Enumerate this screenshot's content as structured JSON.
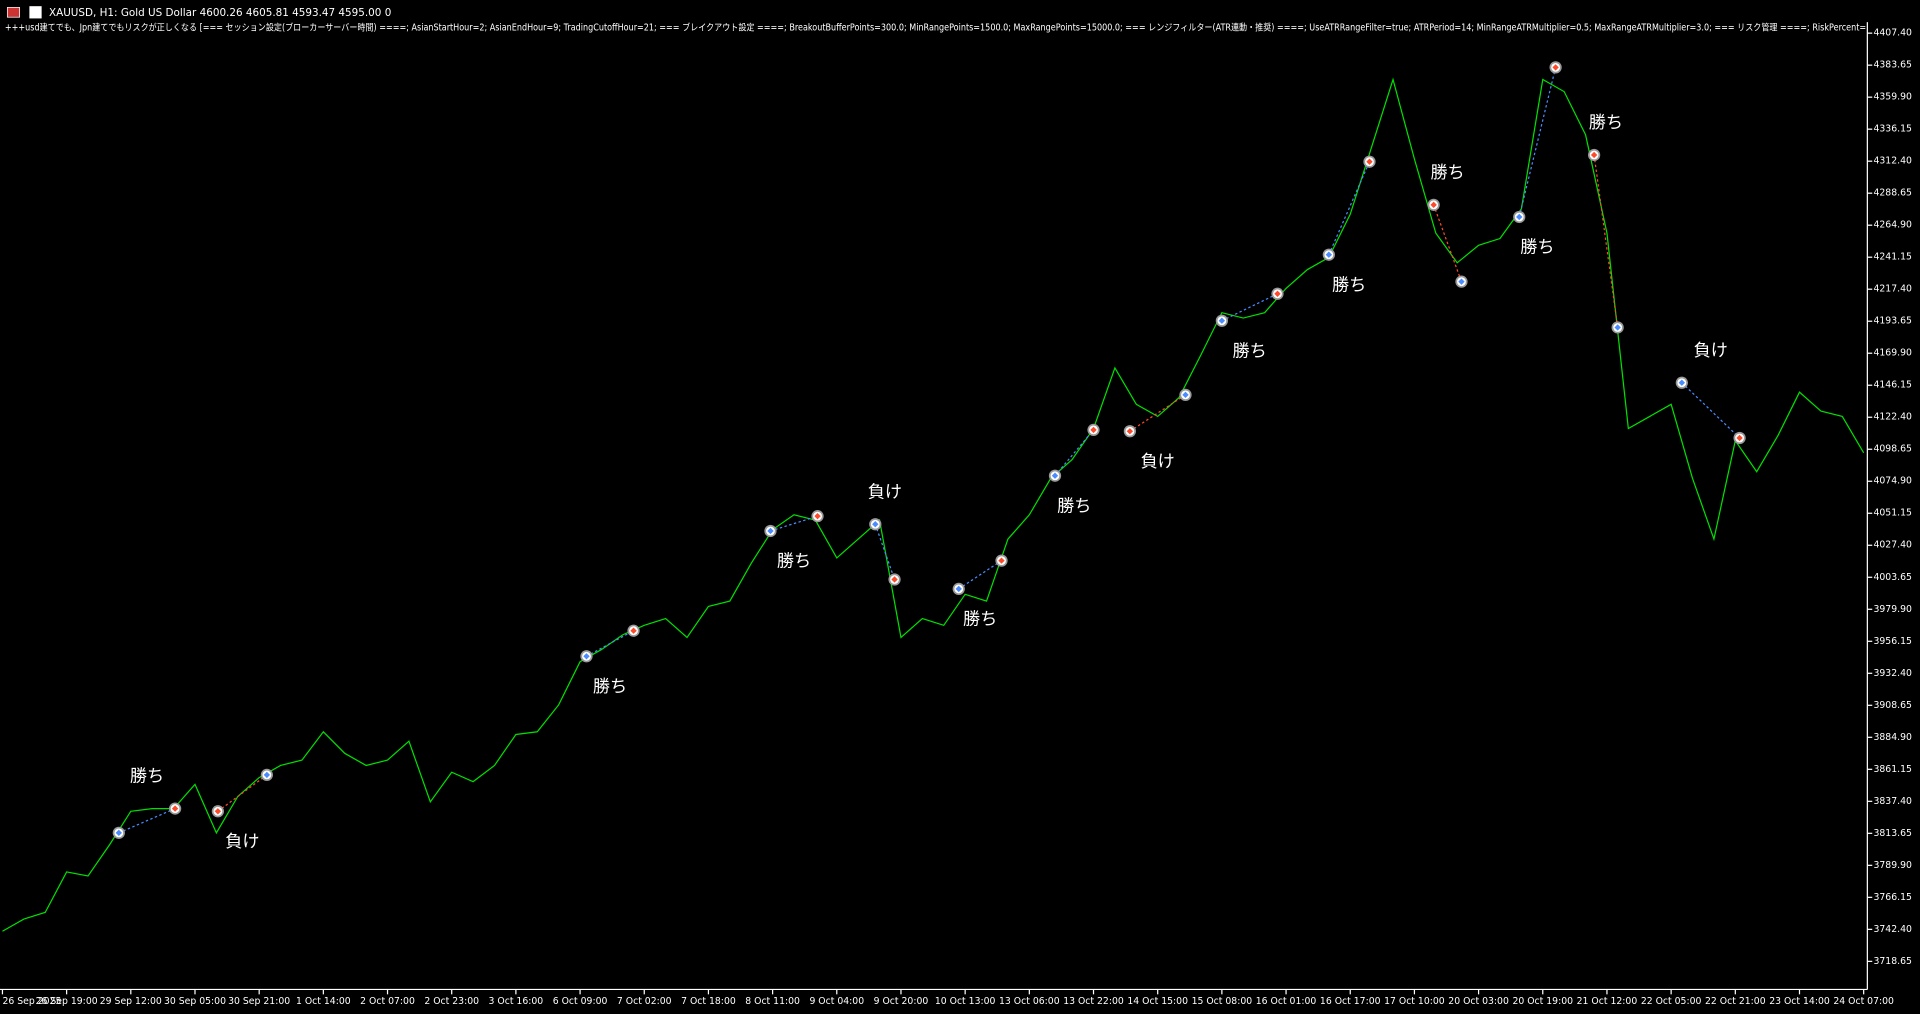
{
  "chart_data": {
    "type": "line",
    "title": "XAUUSD, H1:  Gold US Dollar  4600.26 4605.81 4593.47 4595.00  0",
    "subtitle": "+++usd建てでも、Jpn建てでもリスクが正しくなる [=== セッション設定(ブローカーサーバー時間) ====; AsianStartHour=2; AsianEndHour=9; TradingCutoffHour=21; === ブレイクアウト設定 ====; BreakoutBufferPoints=300.0; MinRangePoints=1500.0; MaxRangePoints=15000.0; === レンジフィルター(ATR連動・推奨) ====; UseATRRangeFilter=true; ATRPeriod=14; MinRangeATRMultiplier=0.5; MaxRangeATRMultiplier=3.0; === リスク管理 ====; RiskPercent=",
    "categories": [
      "26 Sep 2025",
      null,
      null,
      "26 Sep 19:00",
      null,
      null,
      "29 Sep 12:00",
      null,
      null,
      "30 Sep 05:00",
      null,
      null,
      "30 Sep 21:00",
      null,
      null,
      "1 Oct 14:00",
      null,
      null,
      "2 Oct 07:00",
      null,
      null,
      "2 Oct 23:00",
      null,
      null,
      "3 Oct 16:00",
      null,
      null,
      "6 Oct 09:00",
      null,
      null,
      "7 Oct 02:00",
      null,
      null,
      "7 Oct 18:00",
      null,
      null,
      "8 Oct 11:00",
      null,
      null,
      "9 Oct 04:00",
      null,
      null,
      "9 Oct 20:00",
      null,
      null,
      "10 Oct 13:00",
      null,
      null,
      "13 Oct 06:00",
      null,
      null,
      "13 Oct 22:00",
      null,
      null,
      "14 Oct 15:00",
      null,
      null,
      "15 Oct 08:00",
      null,
      null,
      "16 Oct 01:00",
      null,
      null,
      "16 Oct 17:00",
      null,
      null,
      "17 Oct 10:00",
      null,
      null,
      "20 Oct 03:00",
      null,
      null,
      "20 Oct 19:00",
      null,
      null,
      "21 Oct 12:00",
      null,
      null,
      "22 Oct 05:00",
      null,
      null,
      "22 Oct 21:00",
      null,
      null,
      "23 Oct 14:00",
      null,
      null,
      "24 Oct 07:00"
    ],
    "values": [
      3741,
      3750,
      3755,
      3785,
      3782,
      3805,
      3830,
      3832,
      3832,
      3850,
      3814,
      3841,
      3855,
      3864,
      3868,
      3889,
      3873,
      3864,
      3868,
      3882,
      3837,
      3859,
      3852,
      3864,
      3887,
      3889,
      3909,
      3941,
      3950,
      3961,
      3968,
      3973,
      3959,
      3982,
      3986,
      4014,
      4039,
      4050,
      4046,
      4018,
      4032,
      4046,
      3959,
      3973,
      3968,
      3991,
      3986,
      4032,
      4050,
      4077,
      4091,
      4114,
      4159,
      4132,
      4123,
      4137,
      4168,
      4200,
      4196,
      4200,
      4218,
      4232,
      4241,
      4273,
      4323,
      4373,
      4314,
      4259,
      4237,
      4250,
      4255,
      4277,
      4373,
      4364,
      4332,
      4259,
      4114,
      4123,
      4132,
      4077,
      4032,
      4105,
      4082,
      4109,
      4141,
      4127,
      4123,
      4096
    ],
    "color": "#00e000",
    "ylim": [
      3697.8,
      4415.6
    ],
    "yticks": [
      3718.65,
      {
        "value": 3742.4,
        "label": "3742.40"
      },
      3766.15,
      {
        "value": 3789.9,
        "label": "3789.90"
      },
      3813.65,
      {
        "value": 3837.4,
        "label": "3837.40"
      },
      3861.15,
      {
        "value": 3884.9,
        "label": "3884.90"
      },
      3908.65,
      {
        "value": 3932.4,
        "label": "3932.40"
      },
      3956.15,
      {
        "value": 3979.9,
        "label": "3979.90"
      },
      4003.65,
      {
        "value": 4027.4,
        "label": "4027.40"
      },
      4051.15,
      {
        "value": 4074.9,
        "label": "4074.90"
      },
      4098.65,
      {
        "value": 4122.4,
        "label": "4122.40"
      },
      4146.15,
      {
        "value": 4169.9,
        "label": "4169.90"
      },
      4193.65,
      {
        "value": 4217.4,
        "label": "4217.40"
      },
      4241.15,
      {
        "value": 4264.9,
        "label": "4264.90"
      },
      4288.65,
      {
        "value": 4312.4,
        "label": "4312.40"
      },
      4336.15,
      {
        "value": 4359.9,
        "label": "4359.90"
      },
      4383.65,
      {
        "value": 4407.4,
        "label": "4407.40"
      }
    ],
    "grid": false,
    "trades": [
      {
        "entry": {
          "index": 5.44,
          "price": 3814
        },
        "exit": {
          "index": 8.07,
          "price": 3832
        },
        "color": "#4a8cff",
        "result": "勝ち",
        "label": "above"
      },
      {
        "entry": {
          "index": 10.07,
          "price": 3830
        },
        "exit": {
          "index": 12.36,
          "price": 3857
        },
        "color": "#ff4a2a",
        "result": "負け",
        "label": "below"
      },
      {
        "entry": {
          "index": 27.3,
          "price": 3945
        },
        "exit": {
          "index": 29.5,
          "price": 3964
        },
        "color": "#4a8cff",
        "result": "勝ち",
        "label": "below"
      },
      {
        "entry": {
          "index": 35.9,
          "price": 4038
        },
        "exit": {
          "index": 38.1,
          "price": 4049
        },
        "color": "#4a8cff",
        "result": "勝ち",
        "label": "below"
      },
      {
        "entry": {
          "index": 40.8,
          "price": 4043
        },
        "exit": {
          "index": 41.7,
          "price": 4002
        },
        "color": "#4a8cff",
        "result": "負け",
        "label": "above"
      },
      {
        "entry": {
          "index": 44.7,
          "price": 3995
        },
        "exit": {
          "index": 46.7,
          "price": 4016
        },
        "color": "#4a8cff",
        "result": "勝ち",
        "label": "below"
      },
      {
        "entry": {
          "index": 49.2,
          "price": 4079
        },
        "exit": {
          "index": 51.0,
          "price": 4113
        },
        "color": "#4a8cff",
        "result": "勝ち",
        "label": "below"
      },
      {
        "entry": {
          "index": 52.7,
          "price": 4112
        },
        "exit": {
          "index": 55.3,
          "price": 4139
        },
        "color": "#ff4a2a",
        "result": "負け",
        "label": "below"
      },
      {
        "entry": {
          "index": 57.0,
          "price": 4194
        },
        "exit": {
          "index": 59.6,
          "price": 4214
        },
        "color": "#4a8cff",
        "result": "勝ち",
        "label": "below"
      },
      {
        "entry": {
          "index": 62.0,
          "price": 4243
        },
        "exit": {
          "index": 63.9,
          "price": 4312
        },
        "color": "#4a8cff",
        "result": "勝ち",
        "label": "below"
      },
      {
        "entry": {
          "index": 66.9,
          "price": 4280
        },
        "exit": {
          "index": 68.2,
          "price": 4223
        },
        "color": "#ff4a2a",
        "result": "勝ち",
        "label": "above"
      },
      {
        "entry": {
          "index": 70.9,
          "price": 4271
        },
        "exit": {
          "index": 72.6,
          "price": 4382
        },
        "color": "#4a8cff",
        "result": "勝ち",
        "label": "below"
      },
      {
        "entry": {
          "index": 74.4,
          "price": 4317
        },
        "exit": {
          "index": 75.5,
          "price": 4189
        },
        "color": "#ff4a2a",
        "result": "勝ち",
        "label": "above"
      },
      {
        "entry": {
          "index": 78.5,
          "price": 4148
        },
        "exit": {
          "index": 81.2,
          "price": 4107
        },
        "color": "#4a8cff",
        "result": "負け",
        "label": "above"
      }
    ]
  }
}
